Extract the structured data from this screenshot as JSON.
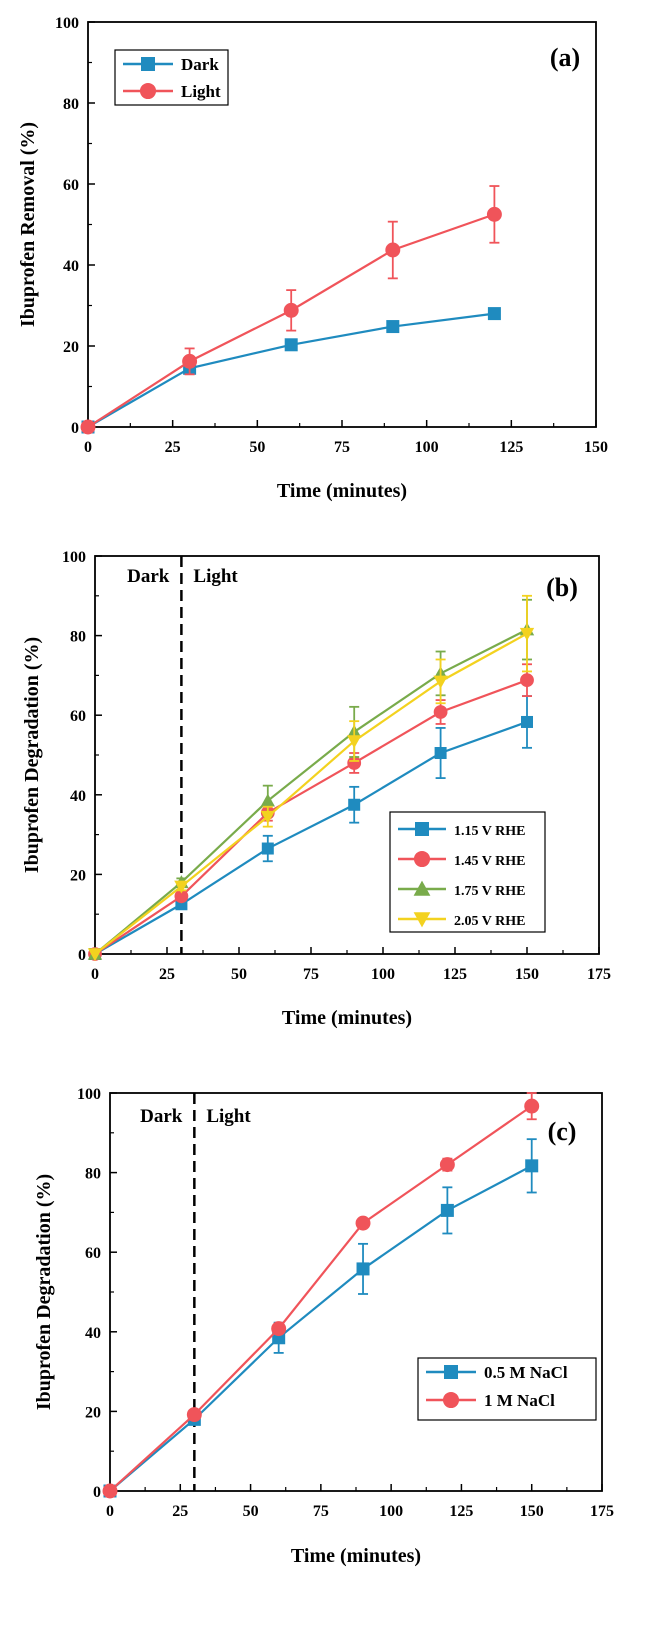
{
  "figure": {
    "colors": {
      "blue": "#1f8bbf",
      "red": "#f0545a",
      "green": "#79ab4b",
      "yellow": "#f3d21f",
      "axis": "#000000",
      "background": "#ffffff"
    }
  },
  "chart_data": [
    {
      "type": "line",
      "panel_label": "(a)",
      "xlabel": "Time (minutes)",
      "ylabel": "Ibuprofen Removal (%)",
      "xlim": [
        0,
        150
      ],
      "ylim": [
        0,
        100
      ],
      "xticks": [
        0,
        25,
        50,
        75,
        100,
        125,
        150
      ],
      "yticks": [
        0,
        20,
        40,
        60,
        80,
        100
      ],
      "grid": false,
      "legend_position": "top-left",
      "regions": [],
      "series": [
        {
          "name": "Dark",
          "marker": "square",
          "color": "#1f8bbf",
          "x": [
            0,
            30,
            60,
            90,
            120
          ],
          "y": [
            0,
            14.5,
            20.3,
            24.8,
            28.0
          ],
          "err": [
            0,
            1.2,
            1.0,
            1.0,
            1.0
          ]
        },
        {
          "name": "Light",
          "marker": "circle",
          "color": "#f0545a",
          "x": [
            0,
            30,
            60,
            90,
            120
          ],
          "y": [
            0,
            16.2,
            28.8,
            43.7,
            52.5
          ],
          "err": [
            0,
            3.2,
            5.0,
            7.0,
            7.0
          ]
        }
      ]
    },
    {
      "type": "line",
      "panel_label": "(b)",
      "xlabel": "Time (minutes)",
      "ylabel": "Ibuprofen Degradation (%)",
      "xlim": [
        0,
        175
      ],
      "ylim": [
        0,
        100
      ],
      "xticks": [
        0,
        25,
        50,
        75,
        100,
        125,
        150,
        175
      ],
      "yticks": [
        0,
        20,
        40,
        60,
        80,
        100
      ],
      "grid": false,
      "legend_position": "bottom-right",
      "divider_x": 30,
      "regions": [
        "Dark",
        "Light"
      ],
      "series": [
        {
          "name": "1.15 V RHE",
          "marker": "square",
          "color": "#1f8bbf",
          "x": [
            0,
            30,
            60,
            90,
            120,
            150
          ],
          "y": [
            0,
            12.5,
            26.5,
            37.5,
            50.5,
            58.3
          ],
          "err": [
            0,
            1.0,
            3.2,
            4.5,
            6.3,
            6.5
          ]
        },
        {
          "name": "1.45 V RHE",
          "marker": "circle",
          "color": "#f0545a",
          "x": [
            0,
            30,
            60,
            90,
            120,
            150
          ],
          "y": [
            0,
            14.5,
            35.5,
            48.0,
            60.8,
            68.8
          ],
          "err": [
            0,
            1.0,
            2.0,
            2.5,
            3.0,
            4.0
          ]
        },
        {
          "name": "1.75 V RHE",
          "marker": "triangle-up",
          "color": "#79ab4b",
          "x": [
            0,
            30,
            60,
            90,
            120,
            150
          ],
          "y": [
            0,
            18.0,
            38.5,
            55.8,
            70.5,
            81.5
          ],
          "err": [
            0,
            1.0,
            3.8,
            6.3,
            5.5,
            7.5
          ]
        },
        {
          "name": "2.05 V RHE",
          "marker": "triangle-down",
          "color": "#f3d21f",
          "x": [
            0,
            30,
            60,
            90,
            120,
            150
          ],
          "y": [
            0,
            17.0,
            34.5,
            53.5,
            68.5,
            80.5
          ],
          "err": [
            0,
            1.0,
            2.5,
            5.0,
            5.5,
            9.5
          ]
        }
      ]
    },
    {
      "type": "line",
      "panel_label": "(c)",
      "xlabel": "Time (minutes)",
      "ylabel": "Ibuprofen Degradation (%)",
      "xlim": [
        0,
        175
      ],
      "ylim": [
        0,
        100
      ],
      "xticks": [
        0,
        25,
        50,
        75,
        100,
        125,
        150,
        175
      ],
      "yticks": [
        0,
        20,
        40,
        60,
        80,
        100
      ],
      "grid": false,
      "legend_position": "bottom-right",
      "divider_x": 30,
      "regions": [
        "Dark",
        "Light"
      ],
      "series": [
        {
          "name": "0.5 M NaCl",
          "marker": "square",
          "color": "#1f8bbf",
          "x": [
            0,
            30,
            60,
            90,
            120,
            150
          ],
          "y": [
            0,
            18.0,
            38.5,
            55.8,
            70.5,
            81.7
          ],
          "err": [
            0,
            1.0,
            3.8,
            6.3,
            5.8,
            6.7
          ]
        },
        {
          "name": "1 M NaCl",
          "marker": "circle",
          "color": "#f0545a",
          "x": [
            0,
            30,
            60,
            90,
            120,
            150
          ],
          "y": [
            0,
            19.2,
            40.8,
            67.3,
            82.0,
            96.7
          ],
          "err": [
            0,
            0.8,
            1.0,
            1.0,
            1.5,
            3.3
          ]
        }
      ]
    }
  ]
}
